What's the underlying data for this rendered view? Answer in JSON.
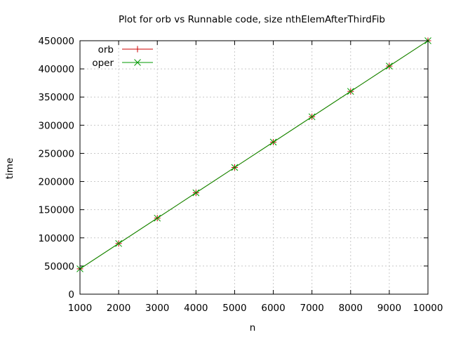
{
  "chart_data": {
    "type": "line",
    "title": "Plot for orb vs Runnable code, size nthElemAfterThirdFib",
    "xlabel": "n",
    "ylabel": "time",
    "xlim": [
      1000,
      10000
    ],
    "ylim": [
      0,
      450000
    ],
    "x_ticks": [
      "1000",
      "2000",
      "3000",
      "4000",
      "5000",
      "6000",
      "7000",
      "8000",
      "9000",
      "10000"
    ],
    "y_ticks": [
      "0",
      "50000",
      "100000",
      "150000",
      "200000",
      "250000",
      "300000",
      "350000",
      "400000",
      "450000"
    ],
    "grid": true,
    "legend_position": "top-left",
    "x": [
      1000,
      2000,
      3000,
      4000,
      5000,
      6000,
      7000,
      8000,
      9000,
      10000
    ],
    "series": [
      {
        "name": "orb",
        "color": "#cc0000",
        "marker": "plus",
        "values": [
          45000,
          90000,
          135000,
          180000,
          225000,
          270000,
          315000,
          360000,
          405000,
          450000
        ]
      },
      {
        "name": "oper",
        "color": "#009900",
        "marker": "cross",
        "values": [
          45000,
          90000,
          135000,
          180000,
          225000,
          270000,
          315000,
          360000,
          405000,
          450000
        ]
      }
    ]
  }
}
